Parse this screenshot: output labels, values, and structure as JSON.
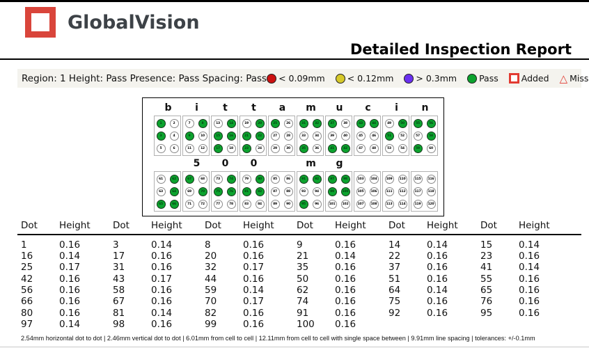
{
  "header": {
    "brand": "GlobalVision",
    "title": "Detailed Inspection Report",
    "logo_color": "#d9453b"
  },
  "region_bar": {
    "summary": "Region: 1 Height: Pass Presence: Pass Spacing: Pass",
    "legend": [
      {
        "icon_name": "red-dot-icon",
        "shape": "circle",
        "color": "#cc1111",
        "label": "< 0.09mm"
      },
      {
        "icon_name": "yellow-dot-icon",
        "shape": "circle",
        "color": "#d6c92b",
        "label": "< 0.12mm"
      },
      {
        "icon_name": "purple-dot-icon",
        "shape": "circle",
        "color": "#6a30f0",
        "label": "> 0.3mm"
      },
      {
        "icon_name": "green-dot-icon",
        "shape": "circle",
        "color": "#0ca32e",
        "label": "Pass"
      },
      {
        "icon_name": "added-square-icon",
        "shape": "square",
        "color": "#e23b32",
        "label": "Added"
      },
      {
        "icon_name": "missing-triangle-icon",
        "shape": "triangle",
        "color": "#e23b32",
        "label": "Missing"
      }
    ]
  },
  "braille": {
    "pass_color": "#0ca32e",
    "rows": [
      {
        "cells": [
          {
            "label": "b",
            "dots": [
              [
                1,
                1
              ],
              [
                2,
                0
              ],
              [
                3,
                1
              ],
              [
                4,
                0
              ],
              [
                5,
                0
              ],
              [
                6,
                0
              ]
            ]
          },
          {
            "label": "i",
            "dots": [
              [
                7,
                0
              ],
              [
                8,
                1
              ],
              [
                9,
                1
              ],
              [
                10,
                0
              ],
              [
                11,
                0
              ],
              [
                12,
                0
              ]
            ]
          },
          {
            "label": "t",
            "dots": [
              [
                13,
                0
              ],
              [
                14,
                1
              ],
              [
                15,
                1
              ],
              [
                16,
                1
              ],
              [
                17,
                1
              ],
              [
                18,
                0
              ]
            ]
          },
          {
            "label": "t",
            "dots": [
              [
                19,
                0
              ],
              [
                20,
                1
              ],
              [
                21,
                1
              ],
              [
                22,
                1
              ],
              [
                23,
                1
              ],
              [
                24,
                0
              ]
            ]
          },
          {
            "label": "a",
            "dots": [
              [
                25,
                1
              ],
              [
                26,
                0
              ],
              [
                27,
                0
              ],
              [
                28,
                0
              ],
              [
                29,
                0
              ],
              [
                30,
                0
              ]
            ]
          },
          {
            "label": "m",
            "dots": [
              [
                31,
                1
              ],
              [
                32,
                1
              ],
              [
                33,
                0
              ],
              [
                34,
                0
              ],
              [
                35,
                1
              ],
              [
                36,
                0
              ]
            ]
          },
          {
            "label": "u",
            "dots": [
              [
                37,
                1
              ],
              [
                38,
                0
              ],
              [
                39,
                0
              ],
              [
                40,
                0
              ],
              [
                41,
                1
              ],
              [
                42,
                1
              ]
            ]
          },
          {
            "label": "c",
            "dots": [
              [
                43,
                1
              ],
              [
                44,
                1
              ],
              [
                45,
                0
              ],
              [
                46,
                0
              ],
              [
                47,
                0
              ],
              [
                48,
                0
              ]
            ]
          },
          {
            "label": "i",
            "dots": [
              [
                49,
                0
              ],
              [
                50,
                1
              ],
              [
                51,
                1
              ],
              [
                52,
                0
              ],
              [
                53,
                0
              ],
              [
                54,
                0
              ]
            ]
          },
          {
            "label": "n",
            "dots": [
              [
                55,
                1
              ],
              [
                56,
                1
              ],
              [
                57,
                0
              ],
              [
                58,
                1
              ],
              [
                59,
                1
              ],
              [
                60,
                0
              ]
            ]
          }
        ]
      },
      {
        "cells": [
          {
            "label": "",
            "dots": [
              [
                61,
                0
              ],
              [
                62,
                1
              ],
              [
                63,
                0
              ],
              [
                64,
                1
              ],
              [
                65,
                1
              ],
              [
                66,
                1
              ]
            ]
          },
          {
            "label": "5",
            "dots": [
              [
                67,
                1
              ],
              [
                68,
                0
              ],
              [
                69,
                0
              ],
              [
                70,
                1
              ],
              [
                71,
                0
              ],
              [
                72,
                0
              ]
            ]
          },
          {
            "label": "0",
            "dots": [
              [
                73,
                0
              ],
              [
                74,
                1
              ],
              [
                75,
                1
              ],
              [
                76,
                1
              ],
              [
                77,
                0
              ],
              [
                78,
                0
              ]
            ]
          },
          {
            "label": "0",
            "dots": [
              [
                79,
                0
              ],
              [
                80,
                1
              ],
              [
                81,
                1
              ],
              [
                82,
                1
              ],
              [
                83,
                0
              ],
              [
                84,
                0
              ]
            ]
          },
          {
            "label": "",
            "dots": [
              [
                85,
                0
              ],
              [
                86,
                0
              ],
              [
                87,
                0
              ],
              [
                88,
                0
              ],
              [
                89,
                0
              ],
              [
                90,
                0
              ]
            ]
          },
          {
            "label": "m",
            "dots": [
              [
                91,
                1
              ],
              [
                92,
                1
              ],
              [
                93,
                0
              ],
              [
                94,
                0
              ],
              [
                95,
                1
              ],
              [
                96,
                0
              ]
            ]
          },
          {
            "label": "g",
            "dots": [
              [
                97,
                1
              ],
              [
                98,
                1
              ],
              [
                99,
                1
              ],
              [
                100,
                1
              ],
              [
                101,
                0
              ],
              [
                102,
                0
              ]
            ]
          },
          {
            "label": "",
            "dots": [
              [
                103,
                0
              ],
              [
                104,
                0
              ],
              [
                105,
                0
              ],
              [
                106,
                0
              ],
              [
                107,
                0
              ],
              [
                108,
                0
              ]
            ]
          },
          {
            "label": "",
            "dots": [
              [
                109,
                0
              ],
              [
                110,
                0
              ],
              [
                111,
                0
              ],
              [
                112,
                0
              ],
              [
                113,
                0
              ],
              [
                114,
                0
              ]
            ]
          },
          {
            "label": "",
            "dots": [
              [
                115,
                0
              ],
              [
                116,
                0
              ],
              [
                117,
                0
              ],
              [
                118,
                0
              ],
              [
                119,
                0
              ],
              [
                120,
                0
              ]
            ]
          }
        ]
      }
    ]
  },
  "table": {
    "header_pair": [
      "Dot",
      "Height"
    ],
    "pairs_per_row": 6,
    "rows": [
      [
        [
          "1",
          "0.16"
        ],
        [
          "3",
          "0.14"
        ],
        [
          "8",
          "0.16"
        ],
        [
          "9",
          "0.16"
        ],
        [
          "14",
          "0.14"
        ],
        [
          "15",
          "0.14"
        ]
      ],
      [
        [
          "16",
          "0.14"
        ],
        [
          "17",
          "0.16"
        ],
        [
          "20",
          "0.16"
        ],
        [
          "21",
          "0.14"
        ],
        [
          "22",
          "0.16"
        ],
        [
          "23",
          "0.16"
        ]
      ],
      [
        [
          "25",
          "0.17"
        ],
        [
          "31",
          "0.16"
        ],
        [
          "32",
          "0.17"
        ],
        [
          "35",
          "0.16"
        ],
        [
          "37",
          "0.16"
        ],
        [
          "41",
          "0.14"
        ]
      ],
      [
        [
          "42",
          "0.16"
        ],
        [
          "43",
          "0.17"
        ],
        [
          "44",
          "0.16"
        ],
        [
          "50",
          "0.16"
        ],
        [
          "51",
          "0.16"
        ],
        [
          "55",
          "0.16"
        ]
      ],
      [
        [
          "56",
          "0.16"
        ],
        [
          "58",
          "0.16"
        ],
        [
          "59",
          "0.14"
        ],
        [
          "62",
          "0.16"
        ],
        [
          "64",
          "0.14"
        ],
        [
          "65",
          "0.16"
        ]
      ],
      [
        [
          "66",
          "0.16"
        ],
        [
          "67",
          "0.16"
        ],
        [
          "70",
          "0.17"
        ],
        [
          "74",
          "0.16"
        ],
        [
          "75",
          "0.16"
        ],
        [
          "76",
          "0.16"
        ]
      ],
      [
        [
          "80",
          "0.16"
        ],
        [
          "81",
          "0.14"
        ],
        [
          "82",
          "0.16"
        ],
        [
          "91",
          "0.16"
        ],
        [
          "92",
          "0.16"
        ],
        [
          "95",
          "0.16"
        ]
      ],
      [
        [
          "97",
          "0.14"
        ],
        [
          "98",
          "0.16"
        ],
        [
          "99",
          "0.16"
        ],
        [
          "100",
          "0.16"
        ]
      ]
    ]
  },
  "footer": {
    "specs": "2.54mm horizontal dot to dot   |   2.46mm vertical dot to dot   |   6.01mm from cell to cell   |   12.11mm from cell to cell with single space between   |   9.91mm line spacing   |   tolerances: +/-0.1mm"
  }
}
